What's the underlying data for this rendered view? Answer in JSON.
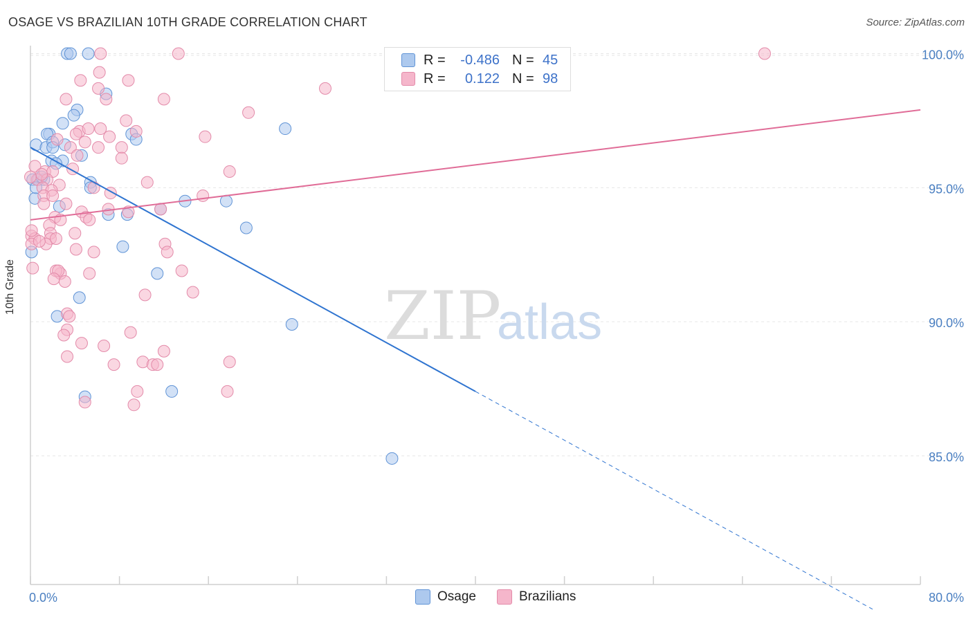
{
  "title": "OSAGE VS BRAZILIAN 10TH GRADE CORRELATION CHART",
  "source": "Source: ZipAtlas.com",
  "watermark": {
    "zip": "ZIP",
    "atlas": "atlas"
  },
  "legend": {
    "rows": [
      {
        "r_label": "R =",
        "r_value": "-0.486",
        "n_label": "N =",
        "n_value": "45"
      },
      {
        "r_label": "R =",
        "r_value": "0.122",
        "n_label": "N =",
        "n_value": "98"
      }
    ]
  },
  "bottom_legend": {
    "osage": "Osage",
    "brazilians": "Brazilians"
  },
  "colors": {
    "osage_fill": "#adc9ee",
    "osage_stroke": "#5f93d6",
    "osage_line": "#2f74d0",
    "braz_fill": "#f5b6cb",
    "braz_stroke": "#e38aa9",
    "braz_line": "#e06c97",
    "tick_text": "#4a7fc1",
    "grid": "#e6e6e6"
  },
  "chart_data": {
    "type": "scatter",
    "title": "OSAGE VS BRAZILIAN 10TH GRADE CORRELATION CHART",
    "xlabel": "",
    "ylabel": "10th Grade",
    "xlim": [
      0,
      80
    ],
    "ylim": [
      80.2,
      100.4
    ],
    "x_tick_labels": [
      "0.0%",
      "80.0%"
    ],
    "y_ticks": [
      {
        "value": 85.0,
        "label": "85.0%"
      },
      {
        "value": 90.0,
        "label": "90.0%"
      },
      {
        "value": 95.0,
        "label": "95.0%"
      },
      {
        "value": 100.0,
        "label": "100.0%"
      }
    ],
    "grid": true,
    "legend_position": "top-center",
    "series": [
      {
        "name": "Osage",
        "r": -0.486,
        "n": 45,
        "trend": {
          "x0": 0.0,
          "y0": 96.5,
          "x1": 40.0,
          "y1": 87.4,
          "dashed_to_x": 80.0,
          "dashed_to_y": 78.3
        },
        "points": [
          [
            3.3,
            100.0
          ],
          [
            3.6,
            100.0
          ],
          [
            5.2,
            100.0
          ],
          [
            6.8,
            98.5
          ],
          [
            4.2,
            97.9
          ],
          [
            3.9,
            97.7
          ],
          [
            1.7,
            97.0
          ],
          [
            1.5,
            97.0
          ],
          [
            9.1,
            97.0
          ],
          [
            2.9,
            97.4
          ],
          [
            0.5,
            96.6
          ],
          [
            1.4,
            96.5
          ],
          [
            2.0,
            96.7
          ],
          [
            2.0,
            96.5
          ],
          [
            3.1,
            96.6
          ],
          [
            4.6,
            96.2
          ],
          [
            1.9,
            96.0
          ],
          [
            2.9,
            96.0
          ],
          [
            2.3,
            95.9
          ],
          [
            9.5,
            96.8
          ],
          [
            22.9,
            97.2
          ],
          [
            0.2,
            95.3
          ],
          [
            0.7,
            95.3
          ],
          [
            1.2,
            95.3
          ],
          [
            5.4,
            95.2
          ],
          [
            5.4,
            95.0
          ],
          [
            0.4,
            94.6
          ],
          [
            2.6,
            94.3
          ],
          [
            11.7,
            94.2
          ],
          [
            13.9,
            94.5
          ],
          [
            17.6,
            94.5
          ],
          [
            7.0,
            94.0
          ],
          [
            8.7,
            94.0
          ],
          [
            19.4,
            93.5
          ],
          [
            8.3,
            92.8
          ],
          [
            0.1,
            92.6
          ],
          [
            11.4,
            91.8
          ],
          [
            4.4,
            90.9
          ],
          [
            2.4,
            90.2
          ],
          [
            23.5,
            89.9
          ],
          [
            4.9,
            87.2
          ],
          [
            12.7,
            87.4
          ],
          [
            32.5,
            84.9
          ],
          [
            0.5,
            95.0
          ],
          [
            1.0,
            95.4
          ]
        ]
      },
      {
        "name": "Brazilians",
        "r": 0.122,
        "n": 98,
        "trend": {
          "x0": 0.0,
          "y0": 93.8,
          "x1": 80.0,
          "y1": 97.9
        },
        "points": [
          [
            6.3,
            100.0
          ],
          [
            13.3,
            100.0
          ],
          [
            66.0,
            100.0
          ],
          [
            6.2,
            99.3
          ],
          [
            4.5,
            99.0
          ],
          [
            8.8,
            99.0
          ],
          [
            6.1,
            98.7
          ],
          [
            26.5,
            98.7
          ],
          [
            3.2,
            98.3
          ],
          [
            6.8,
            98.3
          ],
          [
            12.0,
            98.3
          ],
          [
            19.6,
            97.8
          ],
          [
            8.6,
            97.5
          ],
          [
            4.4,
            97.1
          ],
          [
            5.2,
            97.2
          ],
          [
            6.3,
            97.2
          ],
          [
            9.5,
            97.1
          ],
          [
            4.1,
            97.0
          ],
          [
            15.7,
            96.9
          ],
          [
            7.1,
            96.9
          ],
          [
            4.9,
            96.7
          ],
          [
            2.4,
            96.8
          ],
          [
            3.6,
            96.5
          ],
          [
            6.1,
            96.5
          ],
          [
            8.2,
            96.5
          ],
          [
            4.2,
            96.2
          ],
          [
            8.2,
            96.1
          ],
          [
            0.4,
            95.8
          ],
          [
            1.3,
            95.6
          ],
          [
            2.0,
            95.6
          ],
          [
            3.8,
            95.7
          ],
          [
            17.9,
            95.6
          ],
          [
            0.6,
            95.3
          ],
          [
            1.5,
            95.3
          ],
          [
            1.0,
            95.5
          ],
          [
            0.0,
            95.4
          ],
          [
            2.6,
            95.1
          ],
          [
            10.5,
            95.2
          ],
          [
            1.1,
            95.0
          ],
          [
            5.7,
            95.0
          ],
          [
            1.9,
            94.9
          ],
          [
            7.2,
            94.8
          ],
          [
            1.2,
            94.7
          ],
          [
            2.0,
            94.7
          ],
          [
            15.5,
            94.7
          ],
          [
            1.2,
            94.4
          ],
          [
            3.2,
            94.4
          ],
          [
            4.6,
            94.1
          ],
          [
            7.0,
            94.2
          ],
          [
            8.8,
            94.1
          ],
          [
            11.7,
            94.2
          ],
          [
            5.0,
            93.9
          ],
          [
            2.2,
            93.9
          ],
          [
            2.7,
            93.8
          ],
          [
            1.7,
            93.6
          ],
          [
            1.8,
            93.3
          ],
          [
            4.0,
            93.3
          ],
          [
            5.3,
            93.8
          ],
          [
            0.1,
            93.2
          ],
          [
            0.4,
            93.1
          ],
          [
            1.8,
            93.1
          ],
          [
            1.4,
            92.9
          ],
          [
            0.1,
            92.9
          ],
          [
            0.8,
            93.0
          ],
          [
            2.3,
            93.1
          ],
          [
            4.1,
            92.7
          ],
          [
            12.1,
            92.9
          ],
          [
            5.7,
            92.6
          ],
          [
            12.3,
            92.6
          ],
          [
            2.7,
            91.8
          ],
          [
            2.3,
            91.9
          ],
          [
            2.5,
            91.9
          ],
          [
            5.3,
            91.8
          ],
          [
            13.6,
            91.9
          ],
          [
            2.1,
            91.6
          ],
          [
            3.1,
            91.5
          ],
          [
            14.6,
            91.1
          ],
          [
            10.3,
            91.0
          ],
          [
            3.3,
            90.3
          ],
          [
            3.5,
            90.2
          ],
          [
            3.3,
            89.7
          ],
          [
            3.0,
            89.5
          ],
          [
            9.0,
            89.6
          ],
          [
            4.6,
            89.2
          ],
          [
            6.6,
            89.1
          ],
          [
            12.0,
            88.9
          ],
          [
            3.3,
            88.7
          ],
          [
            10.1,
            88.5
          ],
          [
            11.0,
            88.4
          ],
          [
            7.5,
            88.4
          ],
          [
            11.4,
            88.4
          ],
          [
            17.9,
            88.5
          ],
          [
            9.6,
            87.4
          ],
          [
            17.7,
            87.4
          ],
          [
            9.3,
            86.9
          ],
          [
            4.9,
            87.0
          ],
          [
            0.2,
            92.0
          ],
          [
            0.1,
            93.4
          ]
        ]
      }
    ]
  }
}
